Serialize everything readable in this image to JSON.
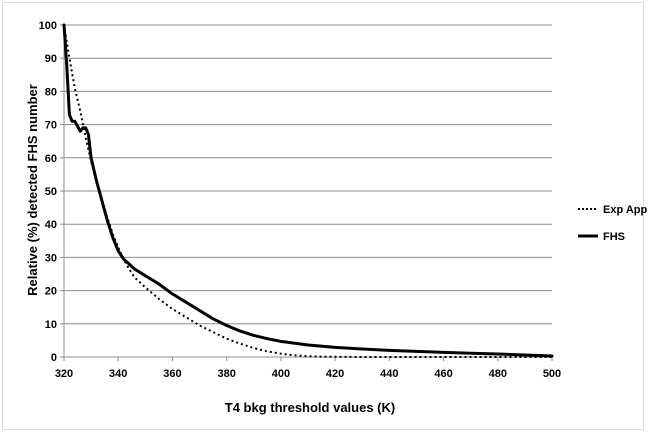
{
  "chart_data": {
    "type": "line",
    "xlabel": "T4 bkg threshold values (K)",
    "ylabel": "Relative (%) detected FHS number",
    "xlim": [
      320,
      500
    ],
    "ylim": [
      0,
      100
    ],
    "x_ticks": [
      320,
      340,
      360,
      380,
      400,
      420,
      440,
      460,
      480,
      500
    ],
    "y_ticks": [
      0,
      10,
      20,
      30,
      40,
      50,
      60,
      70,
      80,
      90,
      100
    ],
    "x_tick_labels": [
      "320",
      "340",
      "360",
      "380",
      "400",
      "420",
      "440",
      "460",
      "480",
      "500"
    ],
    "y_tick_labels": [
      "0",
      "10",
      "20",
      "30",
      "40",
      "50",
      "60",
      "70",
      "80",
      "90",
      "100"
    ],
    "grid": "horizontal",
    "legend_position": "right",
    "series": [
      {
        "name": "Exp Appr",
        "style": "dotted",
        "color": "#000000",
        "x": [
          320,
          322,
          324,
          326,
          328,
          330,
          332,
          334,
          336,
          338,
          340,
          342,
          344,
          346,
          348,
          350,
          355,
          360,
          365,
          370,
          375,
          380,
          385,
          390,
          395,
          400,
          405,
          410,
          415,
          420,
          430,
          440,
          460,
          480,
          500
        ],
        "y": [
          100,
          90,
          81,
          74,
          66,
          59,
          53,
          47,
          42,
          37,
          33,
          29.5,
          26.5,
          24,
          22.5,
          21,
          17.5,
          14.5,
          12,
          9.5,
          7.5,
          5.5,
          4,
          2.7,
          1.7,
          1,
          0.5,
          0.2,
          0.1,
          0.05,
          0,
          0,
          0,
          0,
          0
        ]
      },
      {
        "name": "FHS",
        "style": "solid",
        "color": "#000000",
        "x": [
          320,
          321,
          322,
          323,
          324,
          325,
          326,
          327,
          328,
          329,
          330,
          332,
          334,
          336,
          338,
          340,
          342,
          344,
          346,
          348,
          350,
          355,
          360,
          365,
          370,
          375,
          380,
          385,
          390,
          395,
          400,
          410,
          420,
          430,
          440,
          450,
          460,
          470,
          480,
          490,
          500
        ],
        "y": [
          100,
          88,
          73,
          71,
          71,
          69.5,
          68,
          69,
          69,
          67,
          60,
          53,
          47,
          41,
          36,
          32,
          29.5,
          28,
          26.5,
          25.5,
          24.5,
          22,
          19,
          16.5,
          14,
          11.5,
          9.5,
          7.8,
          6.5,
          5.5,
          4.7,
          3.6,
          2.9,
          2.4,
          2.0,
          1.7,
          1.4,
          1.1,
          0.9,
          0.6,
          0.3
        ]
      }
    ]
  }
}
